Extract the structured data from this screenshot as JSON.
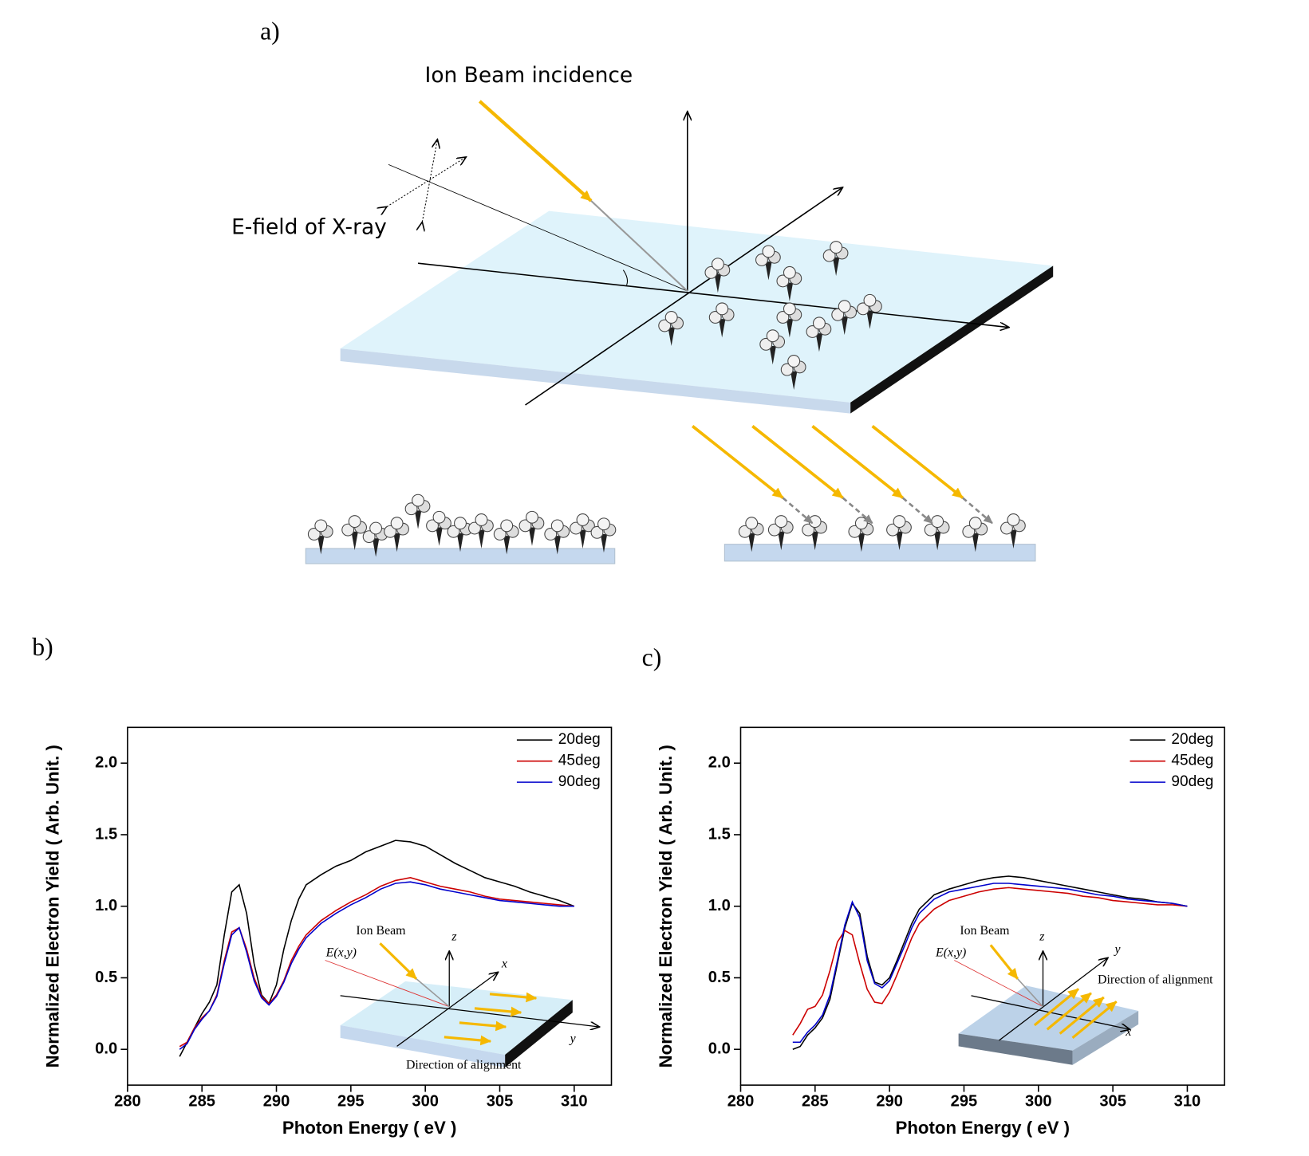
{
  "figure": {
    "panel_a": {
      "label": "a)",
      "ion_beam": "Ion Beam incidence",
      "e_field": "E-field of X-ray"
    },
    "panel_b_label": "b)",
    "panel_c_label": "c)"
  },
  "chart_data": [
    {
      "type": "line",
      "xlabel": "Photon Energy ( eV )",
      "ylabel": "Normalized Electron Yield ( Arb. Unit. )",
      "x": [
        283.5,
        284,
        284.5,
        285,
        285.5,
        286,
        286.5,
        287,
        287.5,
        288,
        288.5,
        289,
        289.5,
        290,
        290.5,
        291,
        291.5,
        292,
        293,
        294,
        295,
        296,
        297,
        298,
        299,
        300,
        301,
        302,
        303,
        304,
        305,
        306,
        307,
        308,
        309,
        310
      ],
      "xlim": [
        280,
        312.5
      ],
      "ylim": [
        -0.25,
        2.25
      ],
      "xticks": [
        280,
        285,
        290,
        295,
        300,
        305,
        310
      ],
      "yticks": [
        {
          "value": 0,
          "label": "0.0"
        },
        0.5,
        {
          "value": 1,
          "label": "1.0"
        },
        1.5,
        {
          "value": 2,
          "label": "2.0"
        }
      ],
      "legend": "upper right",
      "series": [
        {
          "name": "20deg",
          "color": "#000000",
          "values": [
            -0.05,
            0.05,
            0.15,
            0.25,
            0.33,
            0.45,
            0.8,
            1.1,
            1.15,
            0.95,
            0.6,
            0.38,
            0.32,
            0.45,
            0.7,
            0.9,
            1.05,
            1.15,
            1.22,
            1.28,
            1.32,
            1.38,
            1.42,
            1.46,
            1.45,
            1.42,
            1.36,
            1.3,
            1.25,
            1.2,
            1.17,
            1.14,
            1.1,
            1.07,
            1.04,
            1.0
          ]
        },
        {
          "name": "45deg",
          "color": "#cc0000",
          "values": [
            0.02,
            0.05,
            0.15,
            0.22,
            0.27,
            0.38,
            0.62,
            0.82,
            0.85,
            0.7,
            0.5,
            0.37,
            0.32,
            0.38,
            0.48,
            0.62,
            0.72,
            0.8,
            0.9,
            0.97,
            1.03,
            1.08,
            1.14,
            1.18,
            1.2,
            1.17,
            1.14,
            1.12,
            1.1,
            1.07,
            1.05,
            1.04,
            1.03,
            1.02,
            1.01,
            1.0
          ]
        },
        {
          "name": "90deg",
          "color": "#0000cc",
          "values": [
            0.0,
            0.04,
            0.14,
            0.21,
            0.27,
            0.37,
            0.6,
            0.8,
            0.85,
            0.68,
            0.48,
            0.36,
            0.31,
            0.37,
            0.47,
            0.6,
            0.7,
            0.78,
            0.88,
            0.95,
            1.01,
            1.06,
            1.12,
            1.16,
            1.17,
            1.15,
            1.12,
            1.1,
            1.08,
            1.06,
            1.04,
            1.03,
            1.02,
            1.01,
            1.0,
            1.0
          ]
        }
      ],
      "annotations": {
        "ion_beam": "Ion Beam",
        "e_field": "E(x,y)",
        "z": "z",
        "x": "x",
        "y": "y",
        "alignment": "Direction of alignment"
      }
    },
    {
      "type": "line",
      "xlabel": "Photon Energy ( eV )",
      "ylabel": "Normalized Electron Yield ( Arb. Unit. )",
      "x": [
        283.5,
        284,
        284.5,
        285,
        285.5,
        286,
        286.5,
        287,
        287.5,
        288,
        288.5,
        289,
        289.5,
        290,
        290.5,
        291,
        291.5,
        292,
        293,
        294,
        295,
        296,
        297,
        298,
        299,
        300,
        301,
        302,
        303,
        304,
        305,
        306,
        307,
        308,
        309,
        310
      ],
      "xlim": [
        280,
        312.5
      ],
      "ylim": [
        -0.25,
        2.25
      ],
      "xticks": [
        280,
        285,
        290,
        295,
        300,
        305,
        310
      ],
      "yticks": [
        {
          "value": 0,
          "label": "0.0"
        },
        0.5,
        {
          "value": 1,
          "label": "1.0"
        },
        1.5,
        {
          "value": 2,
          "label": "2.0"
        }
      ],
      "legend": "upper right",
      "series": [
        {
          "name": "20deg",
          "color": "#000000",
          "values": [
            0.0,
            0.02,
            0.1,
            0.15,
            0.22,
            0.35,
            0.6,
            0.85,
            1.02,
            0.95,
            0.65,
            0.47,
            0.45,
            0.5,
            0.62,
            0.75,
            0.88,
            0.98,
            1.08,
            1.12,
            1.15,
            1.18,
            1.2,
            1.21,
            1.2,
            1.18,
            1.16,
            1.14,
            1.12,
            1.1,
            1.08,
            1.06,
            1.05,
            1.03,
            1.02,
            1.0
          ]
        },
        {
          "name": "45deg",
          "color": "#cc0000",
          "values": [
            0.1,
            0.18,
            0.28,
            0.3,
            0.38,
            0.55,
            0.75,
            0.83,
            0.8,
            0.6,
            0.42,
            0.33,
            0.32,
            0.4,
            0.52,
            0.65,
            0.78,
            0.88,
            0.98,
            1.04,
            1.07,
            1.1,
            1.12,
            1.13,
            1.12,
            1.11,
            1.1,
            1.09,
            1.07,
            1.06,
            1.04,
            1.03,
            1.02,
            1.01,
            1.01,
            1.0
          ]
        },
        {
          "name": "90deg",
          "color": "#0000cc",
          "values": [
            0.05,
            0.05,
            0.12,
            0.17,
            0.24,
            0.38,
            0.62,
            0.87,
            1.03,
            0.92,
            0.62,
            0.46,
            0.43,
            0.48,
            0.6,
            0.72,
            0.85,
            0.95,
            1.05,
            1.1,
            1.12,
            1.14,
            1.16,
            1.16,
            1.15,
            1.14,
            1.13,
            1.12,
            1.1,
            1.08,
            1.07,
            1.05,
            1.04,
            1.03,
            1.02,
            1.0
          ]
        }
      ],
      "annotations": {
        "ion_beam": "Ion Beam",
        "e_field": "E(x,y)",
        "z": "z",
        "x": "x",
        "y": "y",
        "alignment": "Direction of alignment"
      }
    }
  ]
}
